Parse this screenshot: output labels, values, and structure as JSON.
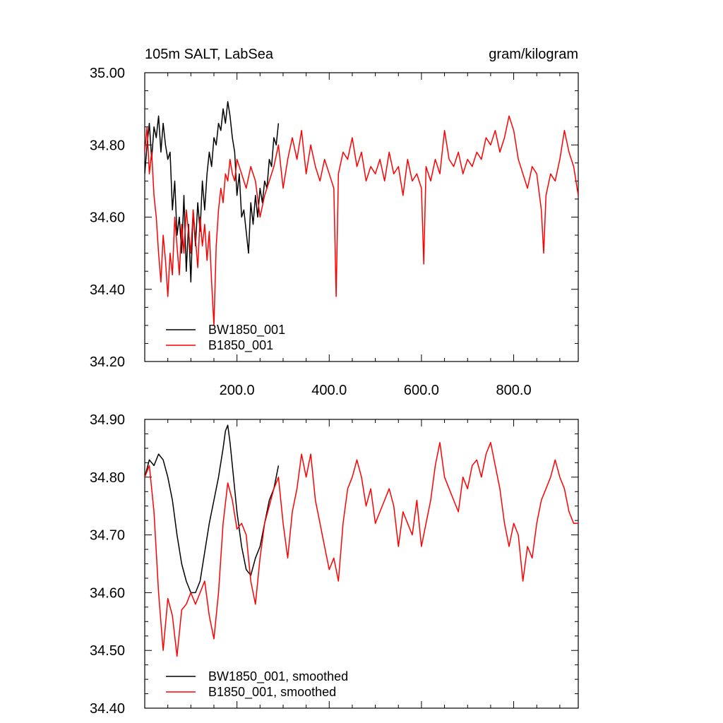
{
  "chart_data": [
    {
      "type": "line",
      "title_left": "105m SALT, LabSea",
      "title_right": "gram/kilogram",
      "xlabel": "",
      "ylabel": "",
      "xlim": [
        0,
        940
      ],
      "ylim": [
        34.2,
        35.0
      ],
      "x_ticks": [
        200,
        400,
        600,
        800
      ],
      "x_tick_labels": [
        "200.0",
        "400.0",
        "600.0",
        "800.0"
      ],
      "y_ticks": [
        34.2,
        34.4,
        34.6,
        34.8,
        35.0
      ],
      "y_tick_labels": [
        "34.20",
        "34.40",
        "34.60",
        "34.80",
        "35.00"
      ],
      "legend_position": "bottom-left",
      "grid": false,
      "series": [
        {
          "name": "BW1850_001",
          "color": "#000000",
          "x": [
            0,
            5,
            10,
            15,
            20,
            25,
            30,
            35,
            40,
            45,
            50,
            55,
            60,
            65,
            70,
            75,
            80,
            85,
            90,
            95,
            100,
            105,
            110,
            115,
            120,
            125,
            130,
            135,
            140,
            145,
            150,
            155,
            160,
            165,
            170,
            175,
            180,
            185,
            190,
            195,
            200,
            205,
            210,
            215,
            220,
            225,
            230,
            235,
            240,
            245,
            250,
            255,
            260,
            265,
            270,
            275,
            280,
            285,
            290
          ],
          "values": [
            34.72,
            34.8,
            34.86,
            34.76,
            34.85,
            34.82,
            34.88,
            34.78,
            34.86,
            34.8,
            34.76,
            34.78,
            34.62,
            34.7,
            34.55,
            34.6,
            34.5,
            34.66,
            34.45,
            34.58,
            34.42,
            34.62,
            34.52,
            34.64,
            34.56,
            34.7,
            34.62,
            34.72,
            34.78,
            34.74,
            34.82,
            34.8,
            34.86,
            34.84,
            34.9,
            34.86,
            34.92,
            34.88,
            34.82,
            34.78,
            34.66,
            34.72,
            34.6,
            34.62,
            34.56,
            34.5,
            34.64,
            34.58,
            34.66,
            34.6,
            34.68,
            34.64,
            34.7,
            34.68,
            34.76,
            34.74,
            34.82,
            34.8,
            34.86
          ]
        },
        {
          "name": "B1850_001",
          "color": "#ff0000",
          "x": [
            0,
            5,
            10,
            15,
            20,
            25,
            30,
            35,
            40,
            45,
            50,
            55,
            60,
            65,
            70,
            75,
            80,
            85,
            90,
            95,
            100,
            105,
            110,
            115,
            120,
            125,
            130,
            135,
            140,
            145,
            150,
            155,
            160,
            165,
            170,
            175,
            180,
            185,
            190,
            195,
            200,
            210,
            220,
            230,
            240,
            250,
            260,
            270,
            280,
            290,
            300,
            310,
            320,
            330,
            340,
            350,
            360,
            370,
            380,
            390,
            400,
            410,
            415,
            420,
            430,
            440,
            450,
            460,
            470,
            480,
            490,
            500,
            510,
            520,
            530,
            540,
            550,
            560,
            570,
            580,
            590,
            600,
            605,
            610,
            620,
            630,
            640,
            650,
            660,
            670,
            680,
            690,
            700,
            710,
            720,
            730,
            740,
            750,
            760,
            770,
            780,
            790,
            800,
            810,
            820,
            830,
            840,
            850,
            860,
            865,
            870,
            880,
            890,
            900,
            910,
            920,
            930,
            940
          ],
          "values": [
            34.78,
            34.85,
            34.72,
            34.78,
            34.66,
            34.6,
            34.5,
            34.42,
            34.55,
            34.48,
            34.38,
            34.5,
            34.44,
            34.6,
            34.52,
            34.44,
            34.58,
            34.5,
            34.62,
            34.56,
            34.5,
            34.62,
            34.54,
            34.46,
            34.6,
            34.52,
            34.58,
            34.48,
            34.56,
            34.42,
            34.3,
            34.52,
            34.62,
            34.68,
            34.64,
            34.72,
            34.7,
            34.76,
            34.72,
            34.7,
            34.76,
            34.72,
            34.68,
            34.74,
            34.7,
            34.6,
            34.66,
            34.7,
            34.74,
            34.8,
            34.68,
            34.76,
            34.82,
            34.76,
            34.84,
            34.72,
            34.8,
            34.74,
            34.7,
            34.76,
            34.72,
            34.68,
            34.38,
            34.72,
            34.78,
            34.76,
            34.82,
            34.74,
            34.78,
            34.7,
            34.74,
            34.72,
            34.76,
            34.7,
            34.78,
            34.72,
            34.74,
            34.66,
            34.76,
            34.7,
            34.72,
            34.68,
            34.47,
            34.74,
            34.7,
            34.76,
            34.72,
            34.84,
            34.76,
            34.74,
            34.78,
            34.72,
            34.76,
            34.74,
            34.78,
            34.76,
            34.82,
            34.8,
            34.84,
            34.78,
            34.82,
            34.88,
            34.84,
            34.76,
            34.72,
            34.68,
            34.74,
            34.72,
            34.62,
            34.5,
            34.66,
            34.72,
            34.7,
            34.76,
            34.84,
            34.78,
            34.74,
            34.66
          ]
        }
      ]
    },
    {
      "type": "line",
      "title_left": "",
      "title_right": "",
      "xlabel": "",
      "ylabel": "",
      "xlim": [
        0,
        940
      ],
      "ylim": [
        34.4,
        34.9
      ],
      "x_ticks": [
        200,
        400,
        600,
        800
      ],
      "x_tick_labels": [],
      "y_ticks": [
        34.4,
        34.5,
        34.6,
        34.7,
        34.8,
        34.9
      ],
      "y_tick_labels": [
        "34.40",
        "34.50",
        "34.60",
        "34.70",
        "34.80",
        "34.90"
      ],
      "legend_position": "bottom-left",
      "grid": false,
      "series": [
        {
          "name": "BW1850_001, smoothed",
          "color": "#000000",
          "x": [
            0,
            10,
            20,
            30,
            40,
            50,
            60,
            70,
            80,
            90,
            100,
            110,
            120,
            130,
            140,
            150,
            160,
            170,
            175,
            180,
            185,
            190,
            200,
            210,
            220,
            230,
            240,
            250,
            260,
            270,
            280,
            290
          ],
          "values": [
            34.8,
            34.83,
            34.82,
            34.84,
            34.83,
            34.8,
            34.76,
            34.7,
            34.65,
            34.62,
            34.6,
            34.6,
            34.62,
            34.67,
            34.72,
            34.76,
            34.8,
            34.85,
            34.88,
            34.89,
            34.86,
            34.82,
            34.74,
            34.68,
            34.64,
            34.63,
            34.66,
            34.68,
            34.72,
            34.76,
            34.78,
            34.82
          ]
        },
        {
          "name": "B1850_001, smoothed",
          "color": "#ff0000",
          "x": [
            0,
            10,
            20,
            30,
            40,
            50,
            60,
            70,
            80,
            90,
            100,
            110,
            120,
            130,
            140,
            150,
            160,
            170,
            180,
            190,
            200,
            210,
            220,
            230,
            240,
            250,
            260,
            270,
            280,
            290,
            300,
            310,
            320,
            330,
            340,
            350,
            360,
            370,
            380,
            390,
            400,
            410,
            420,
            430,
            440,
            450,
            460,
            470,
            480,
            490,
            500,
            510,
            520,
            530,
            540,
            550,
            560,
            570,
            580,
            590,
            600,
            610,
            620,
            630,
            640,
            650,
            660,
            670,
            680,
            690,
            700,
            710,
            720,
            730,
            740,
            750,
            760,
            770,
            780,
            790,
            800,
            810,
            820,
            830,
            840,
            850,
            860,
            870,
            880,
            890,
            900,
            910,
            920,
            930,
            940
          ],
          "values": [
            34.8,
            34.82,
            34.74,
            34.6,
            34.5,
            34.59,
            34.56,
            34.49,
            34.57,
            34.58,
            34.6,
            34.58,
            34.6,
            34.62,
            34.56,
            34.52,
            34.6,
            34.72,
            34.79,
            34.76,
            34.71,
            34.72,
            34.7,
            34.62,
            34.58,
            34.66,
            34.72,
            34.75,
            34.78,
            34.8,
            34.72,
            34.66,
            34.74,
            34.78,
            34.84,
            34.8,
            34.84,
            34.76,
            34.72,
            34.68,
            34.64,
            34.66,
            34.62,
            34.72,
            34.78,
            34.8,
            34.83,
            34.8,
            34.75,
            34.78,
            34.72,
            34.74,
            34.76,
            34.78,
            34.75,
            34.68,
            34.74,
            34.72,
            34.7,
            34.76,
            34.68,
            34.72,
            34.76,
            34.82,
            34.86,
            34.8,
            34.78,
            34.76,
            34.74,
            34.8,
            34.78,
            34.82,
            34.83,
            34.8,
            34.84,
            34.86,
            34.82,
            34.78,
            34.72,
            34.68,
            34.72,
            34.7,
            34.62,
            34.68,
            34.66,
            34.72,
            34.76,
            34.78,
            34.8,
            34.83,
            34.8,
            34.78,
            34.74,
            34.72,
            34.72
          ]
        }
      ]
    }
  ]
}
